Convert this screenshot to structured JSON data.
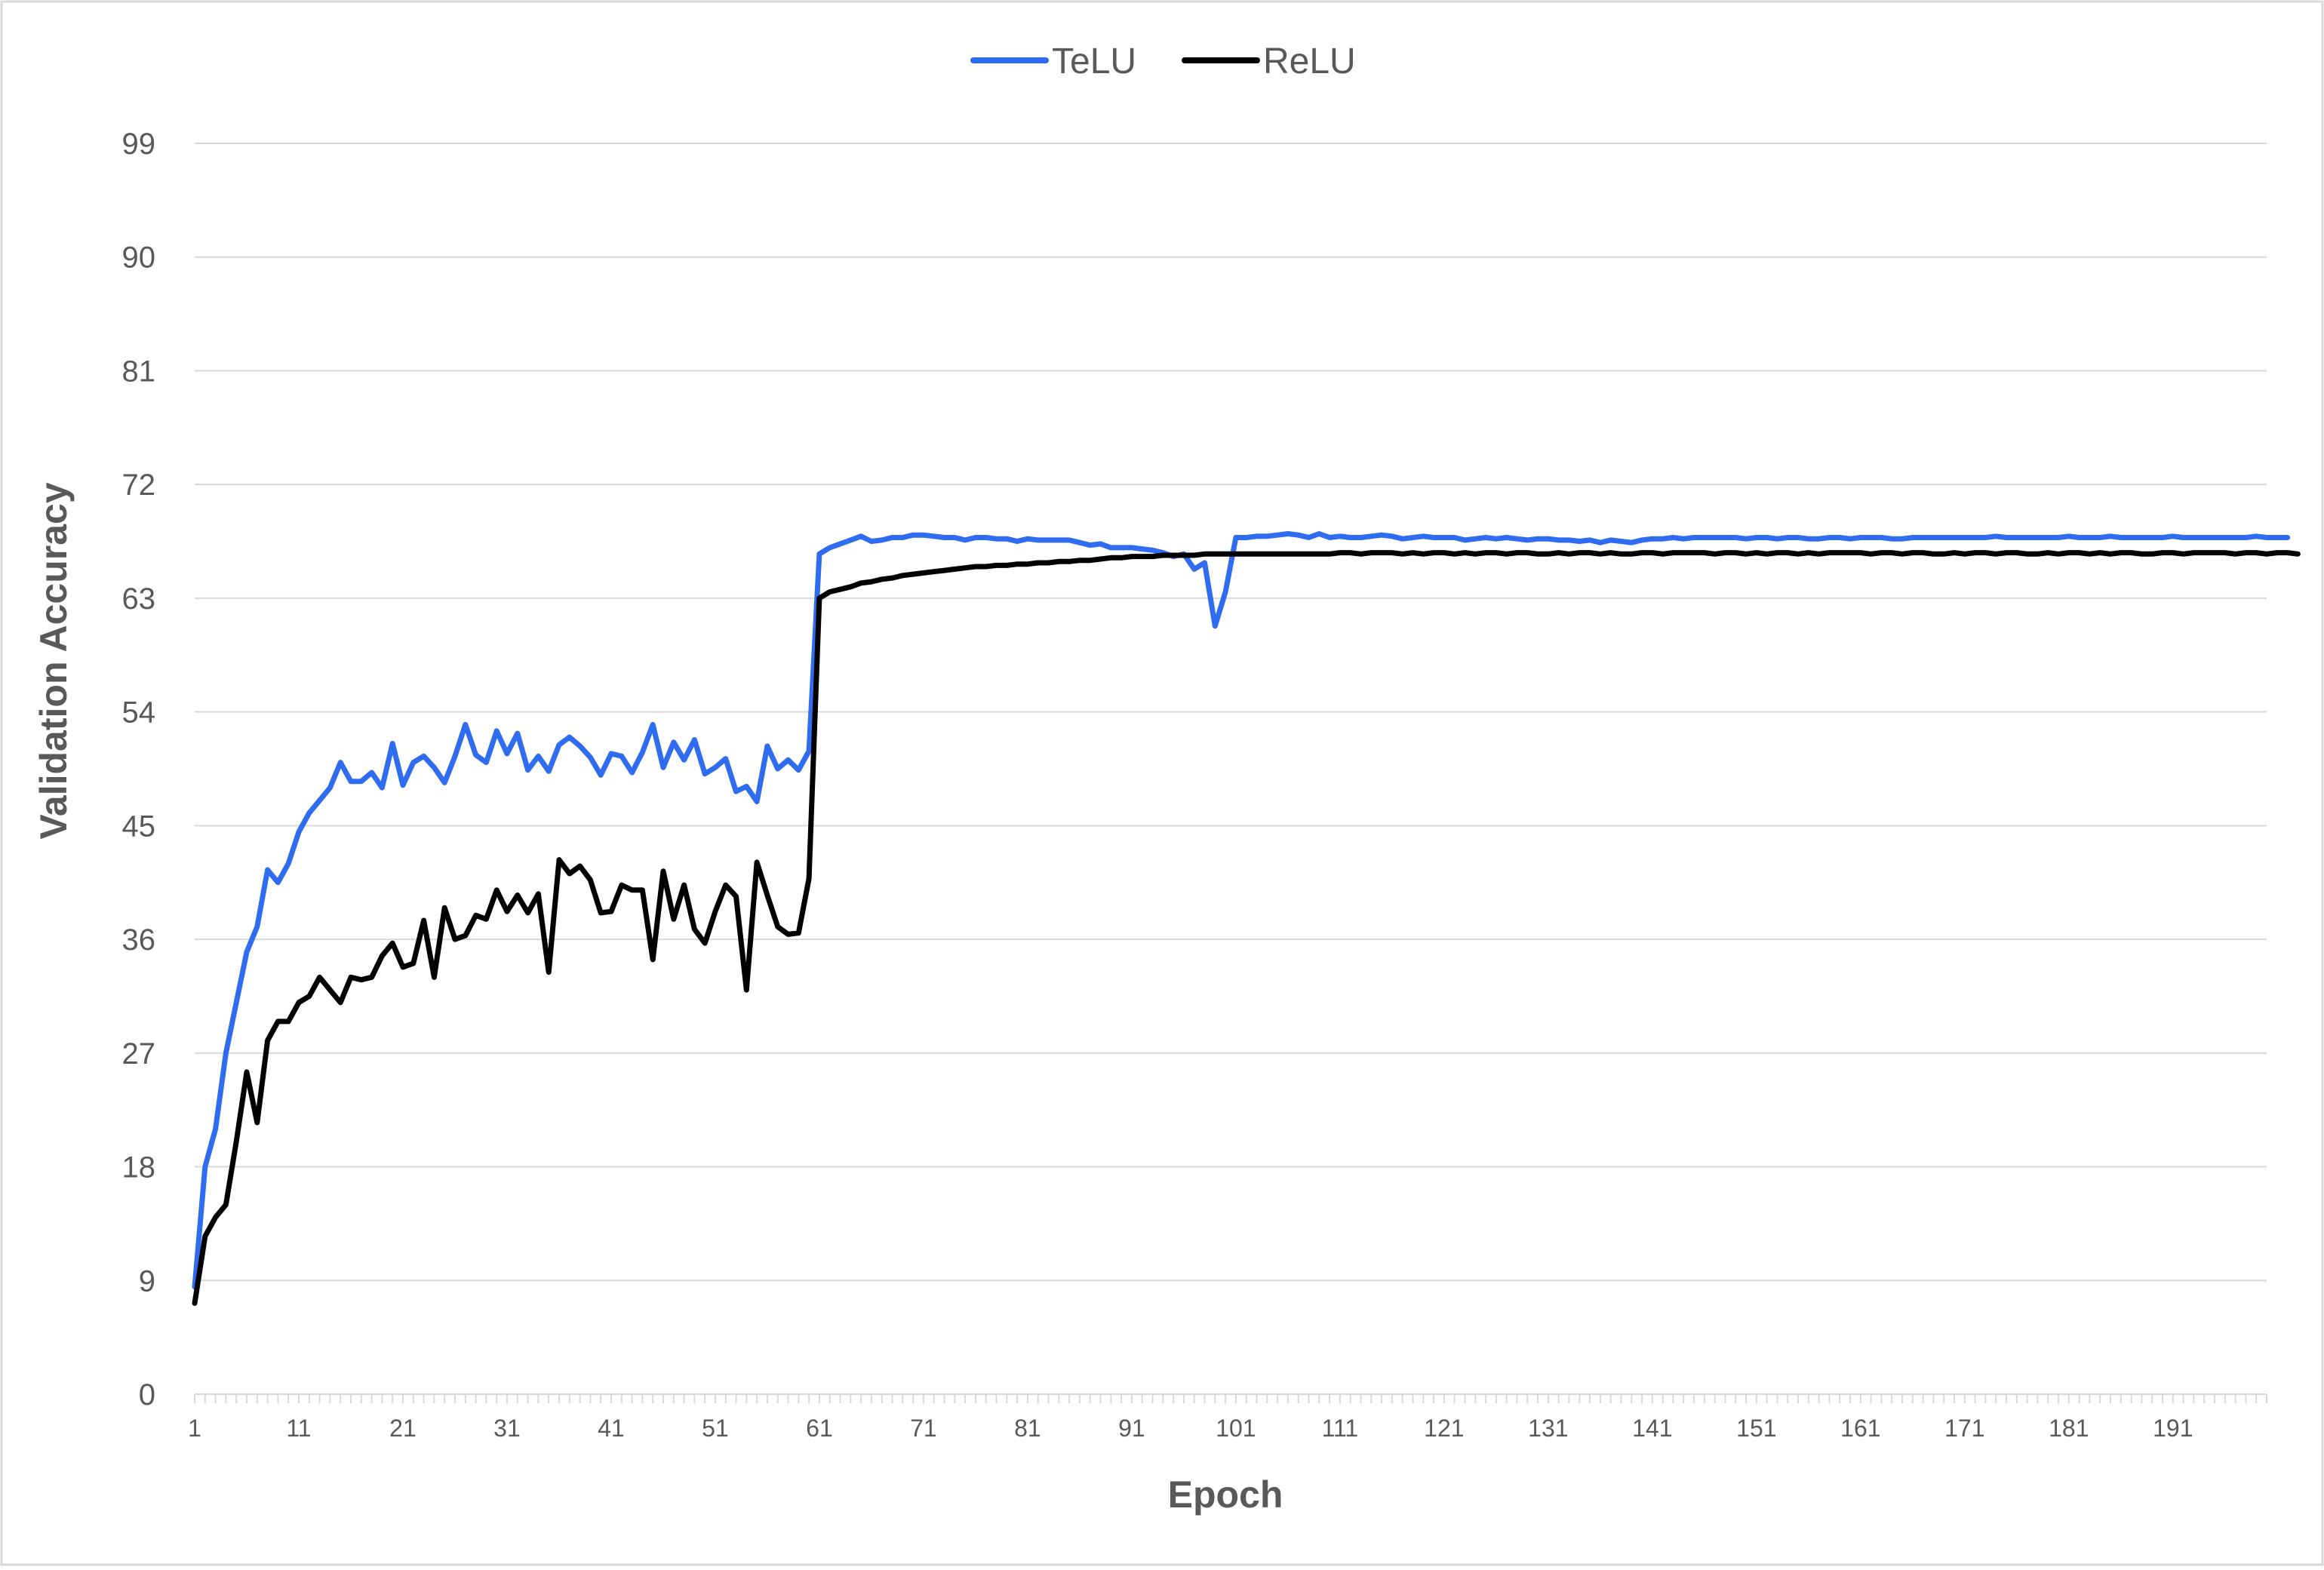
{
  "chart_data": {
    "type": "line",
    "xlabel": "Epoch",
    "ylabel": "Validation Accuracy",
    "ylim": [
      0,
      99
    ],
    "yticks": [
      0,
      9,
      18,
      27,
      36,
      45,
      54,
      63,
      72,
      81,
      90,
      99
    ],
    "xlim": [
      1,
      200
    ],
    "xticks": [
      1,
      11,
      21,
      31,
      41,
      51,
      61,
      71,
      81,
      91,
      101,
      111,
      121,
      131,
      141,
      151,
      161,
      171,
      181,
      191
    ],
    "grid": "horizontal",
    "legend_position": "top-center",
    "colors": {
      "TeLU": "#2f6cf0",
      "ReLU": "#000000"
    },
    "series": [
      {
        "name": "TeLU",
        "values": [
          8.5,
          18,
          21,
          27,
          31,
          35,
          37,
          41.5,
          40.5,
          42,
          44.5,
          46,
          47,
          48,
          50,
          48.5,
          48.5,
          49.2,
          48,
          51.5,
          48.2,
          50,
          50.5,
          49.6,
          48.4,
          50.5,
          53,
          50.6,
          50,
          52.5,
          50.7,
          52.3,
          49.4,
          50.5,
          49.3,
          51.4,
          52,
          51.3,
          50.4,
          49,
          50.7,
          50.5,
          49.2,
          50.8,
          53,
          49.6,
          51.6,
          50.2,
          51.8,
          49.1,
          49.6,
          50.3,
          47.7,
          48.1,
          46.9,
          51.3,
          49.5,
          50.2,
          49.4,
          50.9,
          66.5,
          67,
          67.3,
          67.6,
          67.9,
          67.5,
          67.6,
          67.8,
          67.8,
          68,
          68,
          67.9,
          67.8,
          67.8,
          67.6,
          67.8,
          67.8,
          67.7,
          67.7,
          67.5,
          67.7,
          67.6,
          67.6,
          67.6,
          67.6,
          67.4,
          67.2,
          67.3,
          67,
          67,
          67,
          66.9,
          66.8,
          66.6,
          66.3,
          66.5,
          65.3,
          65.8,
          60.8,
          63.5,
          67.8,
          67.8,
          67.9,
          67.9,
          68,
          68.1,
          68,
          67.8,
          68.1,
          67.8,
          67.9,
          67.8,
          67.8,
          67.9,
          68,
          67.9,
          67.7,
          67.8,
          67.9,
          67.8,
          67.8,
          67.8,
          67.6,
          67.7,
          67.8,
          67.7,
          67.8,
          67.7,
          67.6,
          67.7,
          67.7,
          67.6,
          67.6,
          67.5,
          67.6,
          67.4,
          67.6,
          67.5,
          67.4,
          67.6,
          67.7,
          67.7,
          67.8,
          67.7,
          67.8,
          67.8,
          67.8,
          67.8,
          67.8,
          67.7,
          67.8,
          67.8,
          67.7,
          67.8,
          67.8,
          67.7,
          67.7,
          67.8,
          67.8,
          67.7,
          67.8,
          67.8,
          67.8,
          67.7,
          67.7,
          67.8,
          67.8,
          67.8,
          67.8,
          67.8,
          67.8,
          67.8,
          67.8,
          67.9,
          67.8,
          67.8,
          67.8,
          67.8,
          67.8,
          67.8,
          67.9,
          67.8,
          67.8,
          67.8,
          67.9,
          67.8,
          67.8,
          67.8,
          67.8,
          67.8,
          67.9,
          67.8,
          67.8,
          67.8,
          67.8,
          67.8,
          67.8,
          67.8,
          67.9,
          67.8,
          67.8,
          67.8
        ],
        "color": "#2f6cf0"
      },
      {
        "name": "ReLU",
        "values": [
          7.2,
          12.5,
          14,
          15,
          20,
          25.5,
          21.5,
          28,
          29.5,
          29.5,
          31,
          31.5,
          33,
          32,
          31,
          33,
          32.8,
          33,
          34.7,
          35.7,
          33.8,
          34.1,
          37.5,
          33,
          38.5,
          36,
          36.3,
          37.9,
          37.6,
          39.9,
          38.2,
          39.5,
          38.1,
          39.6,
          33.4,
          42.3,
          41.2,
          41.8,
          40.7,
          38.1,
          38.2,
          40.3,
          39.9,
          39.9,
          34.4,
          41.4,
          37.6,
          40.3,
          36.8,
          35.7,
          38.2,
          40.3,
          39.4,
          32,
          42.1,
          39.5,
          37,
          36.4,
          36.5,
          40.8,
          63,
          63.5,
          63.7,
          63.9,
          64.2,
          64.3,
          64.5,
          64.6,
          64.8,
          64.9,
          65,
          65.1,
          65.2,
          65.3,
          65.4,
          65.5,
          65.5,
          65.6,
          65.6,
          65.7,
          65.7,
          65.8,
          65.8,
          65.9,
          65.9,
          66,
          66,
          66.1,
          66.2,
          66.2,
          66.3,
          66.3,
          66.3,
          66.4,
          66.4,
          66.4,
          66.4,
          66.5,
          66.5,
          66.5,
          66.5,
          66.5,
          66.5,
          66.5,
          66.5,
          66.5,
          66.5,
          66.5,
          66.5,
          66.5,
          66.6,
          66.6,
          66.5,
          66.6,
          66.6,
          66.6,
          66.5,
          66.6,
          66.5,
          66.6,
          66.6,
          66.5,
          66.6,
          66.5,
          66.6,
          66.6,
          66.5,
          66.6,
          66.6,
          66.5,
          66.5,
          66.6,
          66.5,
          66.6,
          66.6,
          66.5,
          66.6,
          66.5,
          66.5,
          66.6,
          66.6,
          66.5,
          66.6,
          66.6,
          66.6,
          66.6,
          66.5,
          66.6,
          66.6,
          66.5,
          66.6,
          66.5,
          66.6,
          66.6,
          66.5,
          66.6,
          66.5,
          66.6,
          66.6,
          66.6,
          66.6,
          66.5,
          66.6,
          66.6,
          66.5,
          66.6,
          66.6,
          66.5,
          66.5,
          66.6,
          66.5,
          66.6,
          66.6,
          66.5,
          66.6,
          66.6,
          66.5,
          66.5,
          66.6,
          66.5,
          66.6,
          66.6,
          66.5,
          66.6,
          66.5,
          66.6,
          66.6,
          66.5,
          66.5,
          66.6,
          66.6,
          66.5,
          66.6,
          66.6,
          66.6,
          66.6,
          66.5,
          66.6,
          66.6,
          66.5,
          66.6,
          66.6,
          66.5
        ],
        "color": "#000000"
      }
    ]
  }
}
